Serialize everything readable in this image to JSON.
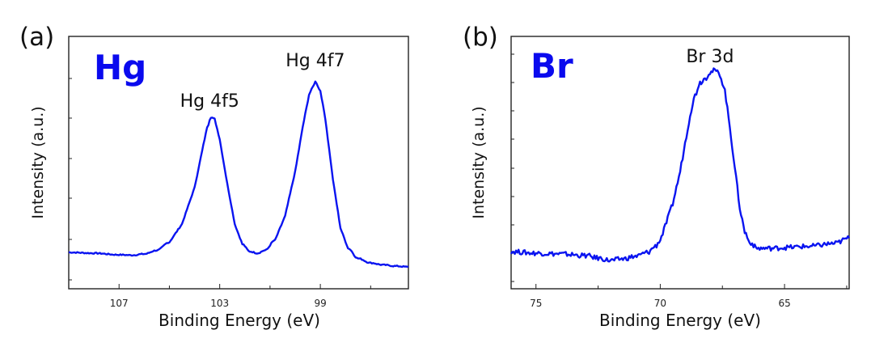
{
  "colors": {
    "line": "#0a14f0",
    "element_label": "#0a0aee",
    "axis": "#222222"
  },
  "chart_data": [
    {
      "type": "line",
      "panel_label": "(a)",
      "element": "Hg",
      "xlabel": "Binding Energy (eV)",
      "ylabel": "Intensity (a.u.)",
      "xlim": [
        109,
        95.5
      ],
      "ylim": [
        0,
        6.24
      ],
      "x_major_ticks": [
        107,
        103,
        99
      ],
      "x_minor_ticks": [
        105,
        101,
        97
      ],
      "y_ticks": [
        0.22,
        1.22,
        2.24,
        3.22,
        4.22,
        5.2
      ],
      "grid": false,
      "noise": 0.015,
      "annotations": [
        {
          "text": "Hg 4f5",
          "x": 103.4,
          "y": 4.5
        },
        {
          "text": "Hg 4f7",
          "x": 99.2,
          "y": 5.5
        }
      ],
      "x": [
        109,
        108,
        107,
        106.5,
        106,
        105.5,
        105,
        104.5,
        104,
        103.7,
        103.5,
        103.35,
        103.2,
        103,
        102.7,
        102.4,
        102.1,
        101.8,
        101.5,
        101.2,
        100.8,
        100.4,
        100,
        99.7,
        99.45,
        99.2,
        99,
        98.8,
        98.5,
        98.2,
        97.9,
        97.5,
        97,
        96.5,
        96,
        95.5
      ],
      "y": [
        0.9,
        0.88,
        0.84,
        0.83,
        0.86,
        0.95,
        1.15,
        1.6,
        2.5,
        3.4,
        4.0,
        4.24,
        4.2,
        3.7,
        2.6,
        1.6,
        1.1,
        0.92,
        0.88,
        0.95,
        1.2,
        1.8,
        2.9,
        4.0,
        4.8,
        5.12,
        4.9,
        4.2,
        2.7,
        1.5,
        1.0,
        0.75,
        0.64,
        0.59,
        0.56,
        0.54
      ]
    },
    {
      "type": "line",
      "panel_label": "(b)",
      "element": "Br",
      "xlabel": "Binding Energy (eV)",
      "ylabel": "Intensity (a.u.)",
      "xlim": [
        76,
        62.4
      ],
      "ylim": [
        0,
        6.24
      ],
      "x_major_ticks": [
        75,
        70,
        65
      ],
      "x_minor_ticks": [
        72.5,
        67.5,
        62.5
      ],
      "y_ticks": [
        0.18,
        0.88,
        1.58,
        2.28,
        2.98,
        3.7,
        4.4,
        5.1,
        5.8
      ],
      "grid": false,
      "noise": 0.06,
      "annotations": [
        {
          "text": "Br 3d",
          "x": 68.0,
          "y": 5.6
        }
      ],
      "x": [
        76,
        75,
        74,
        73,
        72.5,
        72,
        71.5,
        71,
        70.5,
        70.2,
        70,
        69.8,
        69.5,
        69.2,
        69,
        68.8,
        68.6,
        68.4,
        68.2,
        68,
        67.8,
        67.6,
        67.4,
        67.2,
        67,
        66.8,
        66.6,
        66.4,
        66.1,
        65.5,
        65,
        64,
        63,
        62.4
      ],
      "y": [
        0.92,
        0.88,
        0.86,
        0.82,
        0.76,
        0.7,
        0.74,
        0.8,
        0.9,
        1.05,
        1.2,
        1.55,
        2.1,
        2.9,
        3.6,
        4.3,
        4.8,
        5.1,
        5.2,
        5.35,
        5.4,
        5.3,
        4.9,
        4.0,
        3.0,
        2.0,
        1.4,
        1.15,
        1.0,
        1.0,
        1.02,
        1.05,
        1.12,
        1.25
      ]
    }
  ]
}
